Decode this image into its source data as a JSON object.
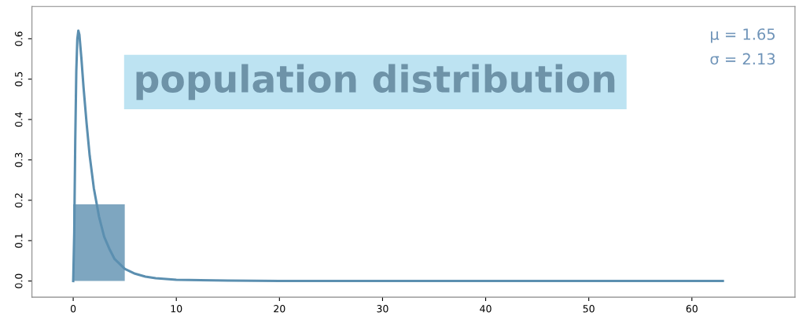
{
  "chart_data": {
    "type": "histogram",
    "title": "population distribution",
    "bins": [
      0,
      5
    ],
    "values": [
      0.19
    ],
    "color": "#7ea6c0",
    "series": [
      {
        "type": "line",
        "color": "#5b8fb0",
        "x": [
          0,
          0.1,
          0.2,
          0.3,
          0.4,
          0.5,
          0.6,
          0.8,
          1,
          1.3,
          1.6,
          2,
          2.5,
          3,
          3.5,
          4,
          5,
          6,
          7,
          8,
          10,
          15,
          20,
          30,
          40,
          50,
          63
        ],
        "values": [
          0,
          0.12,
          0.35,
          0.52,
          0.6,
          0.62,
          0.61,
          0.55,
          0.48,
          0.39,
          0.31,
          0.23,
          0.16,
          0.11,
          0.08,
          0.055,
          0.03,
          0.018,
          0.011,
          0.007,
          0.003,
          0.001,
          0,
          0,
          0,
          0,
          0
        ]
      }
    ],
    "annotations": [
      "μ = 1.65",
      "σ = 2.13"
    ],
    "xlim": [
      -4,
      70
    ],
    "ylim": [
      -0.04,
      0.68
    ],
    "xticks": [
      0,
      10,
      20,
      30,
      40,
      50,
      60
    ],
    "yticks": [
      {
        "value": 0,
        "label": "0.0"
      },
      {
        "value": 0.1,
        "label": "0.1"
      },
      {
        "value": 0.2,
        "label": "0.2"
      },
      {
        "value": 0.3,
        "label": "0.3"
      },
      {
        "value": 0.4,
        "label": "0.4"
      },
      {
        "value": 0.5,
        "label": "0.5"
      },
      {
        "value": 0.6,
        "label": "0.6"
      }
    ],
    "grid": false
  }
}
